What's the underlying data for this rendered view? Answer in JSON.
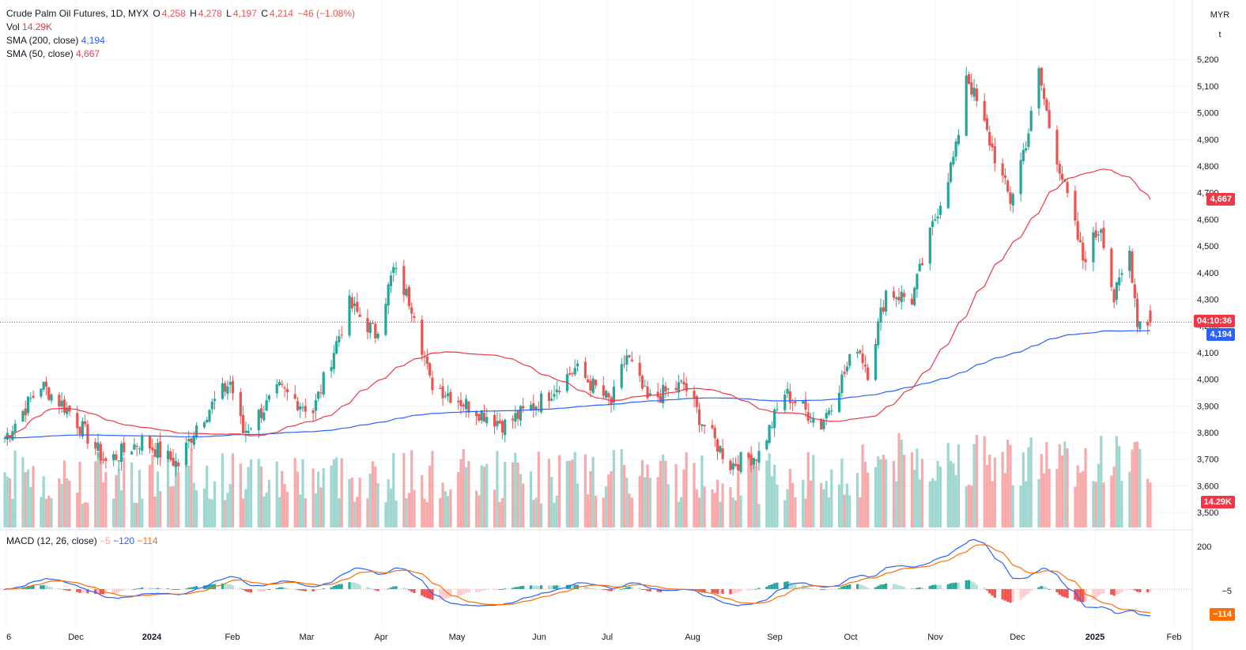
{
  "header": {
    "symbol_line": "Crude Palm Oil Futures, 1D, MYX",
    "ohlc": {
      "o_label": "O",
      "o": "4,258",
      "h_label": "H",
      "h": "4,278",
      "l_label": "L",
      "l": "4,197",
      "c_label": "C",
      "c": "4,214",
      "change": "−46 (−1.08%)"
    },
    "vol_label": "Vol",
    "vol_value": "14.29K",
    "sma200_label": "SMA (200, close)",
    "sma200_value": "4,194",
    "sma50_label": "SMA (50, close)",
    "sma50_value": "4,667",
    "macd_label": "MACD (12, 26, close)",
    "macd_hist": "−5",
    "macd_line": "−120",
    "macd_signal": "−114"
  },
  "price_axis": {
    "unit_top": "MYR",
    "unit_bottom": "t",
    "ticks": [
      "5,200",
      "5,100",
      "5,000",
      "4,900",
      "4,800",
      "4,700",
      "4,600",
      "4,500",
      "4,400",
      "4,300",
      "4,200",
      "4,100",
      "4,000",
      "3,900",
      "3,800",
      "3,700",
      "3,600",
      "3,500"
    ],
    "tags": {
      "sma50": "4,667",
      "countdown": "04:10:36",
      "sma200": "4,194",
      "volume": "14.29K"
    }
  },
  "macd_axis": {
    "ticks": [
      "200"
    ],
    "tags": {
      "hist": "−5",
      "signal": "−114"
    }
  },
  "time_axis": {
    "labels": [
      "6",
      "Dec",
      "2024",
      "Feb",
      "Mar",
      "Apr",
      "May",
      "Jun",
      "Jul",
      "Aug",
      "Sep",
      "Oct",
      "Nov",
      "Dec",
      "2025",
      "Feb"
    ]
  },
  "colors": {
    "up": "#26a69a",
    "down": "#ef5350",
    "up_vol": "#9fd7d0",
    "down_vol": "#f7aaa9",
    "sma200": "#2962ff",
    "sma50": "#f23645",
    "macd": "#2962ff",
    "signal": "#ff6d00",
    "grid": "#f0f3fa"
  },
  "chart_data": {
    "type": "candlestick",
    "title": "Crude Palm Oil Futures, 1D, MYX",
    "ylim": [
      3450,
      5260
    ],
    "last": {
      "open": 4258,
      "high": 4278,
      "low": 4197,
      "close": 4214
    },
    "price_anchor_points": [
      [
        "2023-11-06",
        3780
      ],
      [
        "2023-11-20",
        3980
      ],
      [
        "2023-12-01",
        3880
      ],
      [
        "2023-12-15",
        3690
      ],
      [
        "2023-12-29",
        3770
      ],
      [
        "2024-01-12",
        3680
      ],
      [
        "2024-01-19",
        3830
      ],
      [
        "2024-02-01",
        3990
      ],
      [
        "2024-02-06",
        3800
      ],
      [
        "2024-02-20",
        3960
      ],
      [
        "2024-03-04",
        3880
      ],
      [
        "2024-03-18",
        4280
      ],
      [
        "2024-03-28",
        4170
      ],
      [
        "2024-04-04",
        4410
      ],
      [
        "2024-04-12",
        4260
      ],
      [
        "2024-04-18",
        3990
      ],
      [
        "2024-05-03",
        3900
      ],
      [
        "2024-05-17",
        3830
      ],
      [
        "2024-05-31",
        3920
      ],
      [
        "2024-06-13",
        4040
      ],
      [
        "2024-06-27",
        3910
      ],
      [
        "2024-07-03",
        4090
      ],
      [
        "2024-07-11",
        3920
      ],
      [
        "2024-07-25",
        3980
      ],
      [
        "2024-08-01",
        3840
      ],
      [
        "2024-08-12",
        3680
      ],
      [
        "2024-08-23",
        3720
      ],
      [
        "2024-09-02",
        3950
      ],
      [
        "2024-09-16",
        3830
      ],
      [
        "2024-09-30",
        4130
      ],
      [
        "2024-10-04",
        4030
      ],
      [
        "2024-10-11",
        4330
      ],
      [
        "2024-10-21",
        4300
      ],
      [
        "2024-10-31",
        4640
      ],
      [
        "2024-11-07",
        4860
      ],
      [
        "2024-11-11",
        5150
      ],
      [
        "2024-11-18",
        4950
      ],
      [
        "2024-11-25",
        4750
      ],
      [
        "2024-11-28",
        4670
      ],
      [
        "2024-12-05",
        4930
      ],
      [
        "2024-12-09",
        5150
      ],
      [
        "2024-12-13",
        4950
      ],
      [
        "2024-12-19",
        4720
      ],
      [
        "2024-12-26",
        4450
      ],
      [
        "2025-01-02",
        4580
      ],
      [
        "2025-01-07",
        4300
      ],
      [
        "2025-01-13",
        4480
      ],
      [
        "2025-01-16",
        4220
      ],
      [
        "2025-01-21",
        4214
      ]
    ],
    "series": [
      {
        "name": "SMA (200, close)",
        "last": 4194
      },
      {
        "name": "SMA (50, close)",
        "last": 4667
      },
      {
        "name": "Vol",
        "last": 14290
      },
      {
        "name": "MACD (12, 26, close)",
        "histogram_last": -5,
        "macd_last": -120,
        "signal_last": -114
      }
    ]
  }
}
